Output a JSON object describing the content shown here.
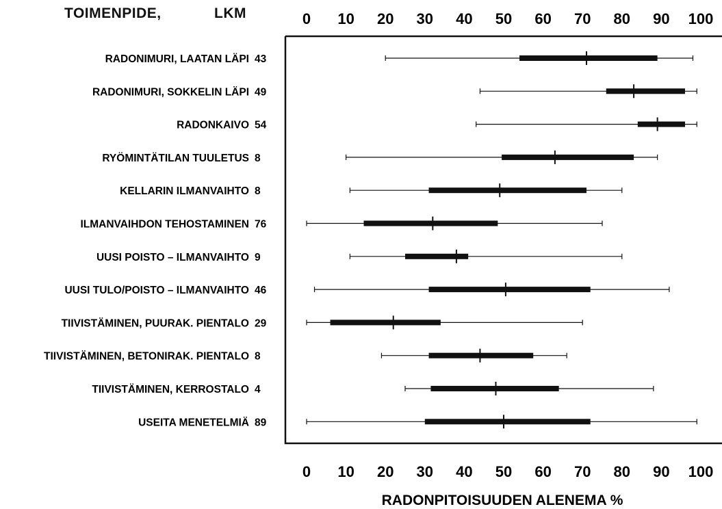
{
  "chart_data": {
    "type": "box",
    "header_left": "TOIMENPIDE,",
    "header_right": "LKM",
    "xlabel": "RADONPITOISUUDEN ALENEMA  %",
    "xlim": [
      0,
      100
    ],
    "ticks": [
      0,
      10,
      20,
      30,
      40,
      50,
      60,
      70,
      80,
      90,
      100
    ],
    "tick_labels": [
      "0",
      "10",
      "20",
      "30",
      "40",
      "50",
      "60",
      "70",
      "80",
      "90",
      "100"
    ],
    "rows": [
      {
        "label": "RADONIMURI, LAATAN LÄPI",
        "count": "43",
        "min": 20,
        "q1": 54,
        "median": 71,
        "q3": 89,
        "max": 98
      },
      {
        "label": "RADONIMURI, SOKKELIN LÄPI",
        "count": "49",
        "min": 44,
        "q1": 76,
        "median": 83,
        "q3": 96,
        "max": 99
      },
      {
        "label": "RADONKAIVO",
        "count": "54",
        "min": 43,
        "q1": 84,
        "median": 89,
        "q3": 96,
        "max": 99
      },
      {
        "label": "RYÖMINTÄTILAN TUULETUS",
        "count": "8",
        "min": 10,
        "q1": 49.5,
        "median": 63,
        "q3": 83,
        "max": 89
      },
      {
        "label": "KELLARIN ILMANVAIHTO",
        "count": "8",
        "min": 11,
        "q1": 31,
        "median": 49,
        "q3": 71,
        "max": 80
      },
      {
        "label": "ILMANVAIHDON TEHOSTAMINEN",
        "count": "76",
        "min": 0,
        "q1": 14.5,
        "median": 32,
        "q3": 48.5,
        "max": 75
      },
      {
        "label": "UUSI POISTO – ILMANVAIHTO",
        "count": "9",
        "min": 11,
        "q1": 25,
        "median": 38,
        "q3": 41,
        "max": 80
      },
      {
        "label": "UUSI TULO/POISTO – ILMANVAIHTO",
        "count": "46",
        "min": 2,
        "q1": 31,
        "median": 50.5,
        "q3": 72,
        "max": 92
      },
      {
        "label": "TIIVISTÄMINEN, PUURAK. PIENTALO",
        "count": "29",
        "min": 0,
        "q1": 6,
        "median": 22,
        "q3": 34,
        "max": 70
      },
      {
        "label": "TIIVISTÄMINEN, BETONIRAK. PIENTALO",
        "count": "8",
        "min": 19,
        "q1": 31,
        "median": 44,
        "q3": 57.5,
        "max": 66
      },
      {
        "label": "TIIVISTÄMINEN, KERROSTALO",
        "count": "4",
        "min": 25,
        "q1": 31.5,
        "median": 48,
        "q3": 64,
        "max": 88
      },
      {
        "label": "USEITA MENETELMIÄ",
        "count": "89",
        "min": 0,
        "q1": 30,
        "median": 50,
        "q3": 72,
        "max": 99
      }
    ]
  }
}
